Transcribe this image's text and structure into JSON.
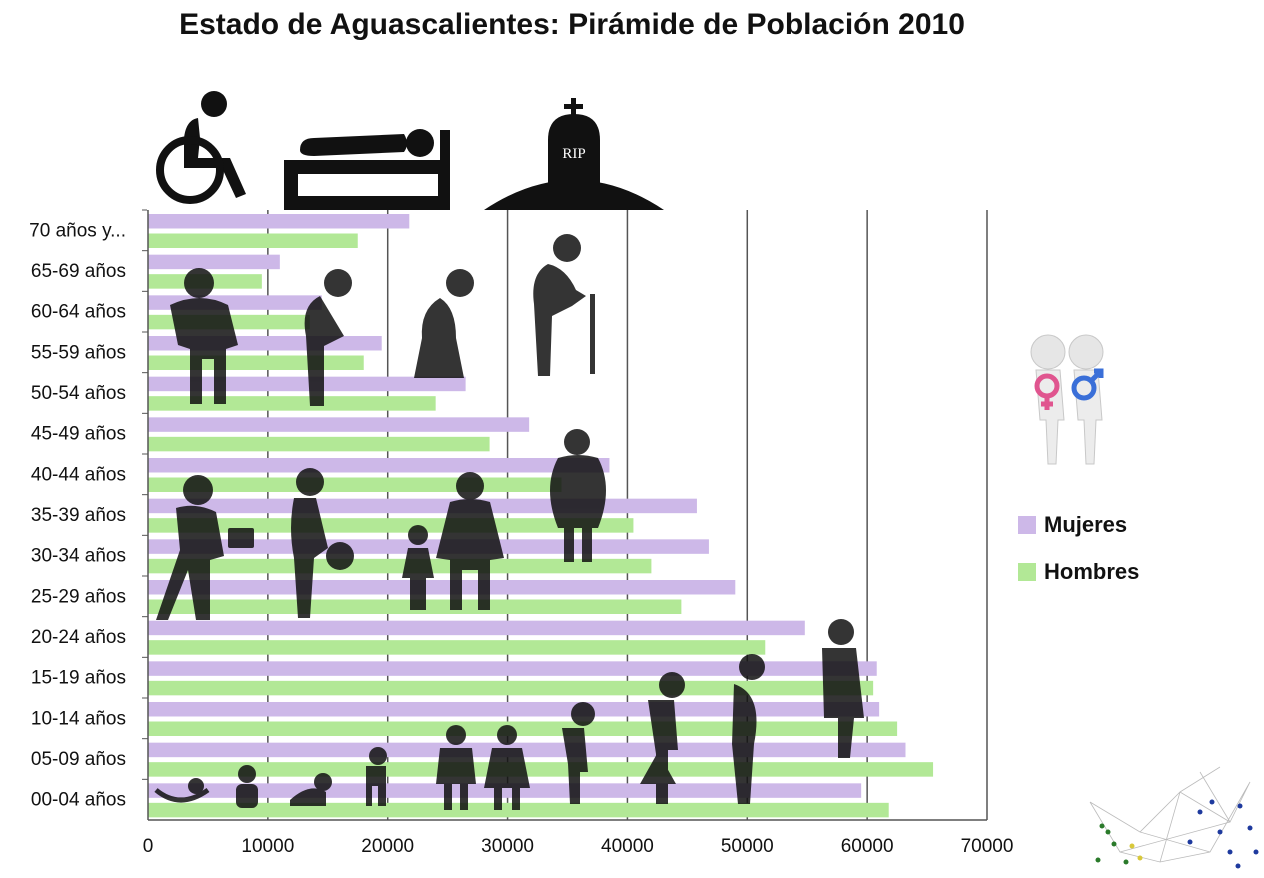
{
  "title": "Estado de Aguascalientes: Pirámide de Población 2010",
  "chart_data": {
    "type": "bar",
    "orientation": "horizontal",
    "categories": [
      "70 años y...",
      "65-69 años",
      "60-64 años",
      "55-59 años",
      "50-54 años",
      "45-49 años",
      "40-44 años",
      "35-39 años",
      "30-34 años",
      "25-29 años",
      "20-24 años",
      "15-19 años",
      "10-14 años",
      "05-09 años",
      "00-04 años"
    ],
    "series": [
      {
        "name": "Mujeres",
        "color": "#cdb8e8",
        "values": [
          21800,
          11000,
          14500,
          19500,
          26500,
          31800,
          38500,
          45800,
          46800,
          49000,
          54800,
          60800,
          61000,
          63200,
          59500
        ]
      },
      {
        "name": "Hombres",
        "color": "#b2e896",
        "values": [
          17500,
          9500,
          13500,
          18000,
          24000,
          28500,
          34500,
          40500,
          42000,
          44500,
          51500,
          60500,
          62500,
          65500,
          61800
        ]
      }
    ],
    "xlim": [
      0,
      70000
    ],
    "xticks": [
      "0",
      "10000",
      "20000",
      "30000",
      "40000",
      "50000",
      "60000",
      "70000"
    ],
    "grid": "vertical",
    "legend": "right"
  },
  "icons": {
    "top": [
      "wheelchair-icon",
      "bed-icon",
      "tombstone-icon"
    ],
    "tombstone_text": "RIP",
    "gender": "gender-figures-icon",
    "network": "network-graph-icon"
  }
}
